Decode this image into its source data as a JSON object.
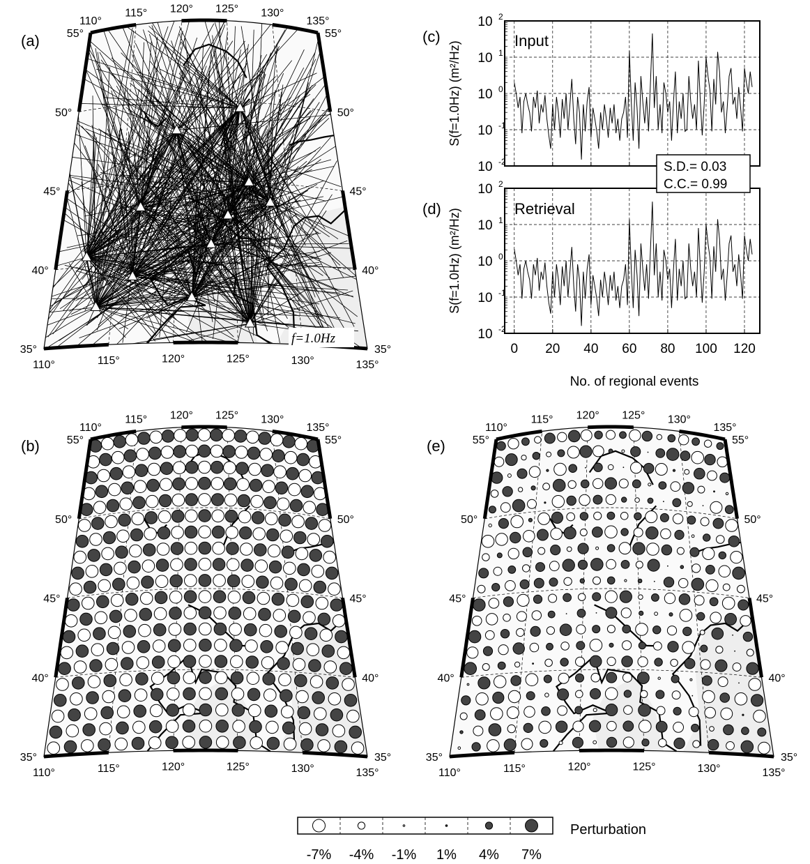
{
  "panels": {
    "a": {
      "label": "(a)",
      "freq_label": "f=1.0Hz"
    },
    "b": {
      "label": "(b)"
    },
    "c": {
      "label": "(c)",
      "title": "Input"
    },
    "d": {
      "label": "(d)",
      "title": "Retrieval"
    },
    "e": {
      "label": "(e)"
    }
  },
  "map_ticks": {
    "lon": [
      "110°",
      "115°",
      "120°",
      "125°",
      "130°",
      "135°"
    ],
    "lat": [
      "35°",
      "40°",
      "45°",
      "50°",
      "55°"
    ]
  },
  "stats": {
    "sd": "S.D.= 0.03",
    "cc": "C.C.= 0.99"
  },
  "chart_data": [
    {
      "type": "line",
      "title": "Input",
      "xlabel": "No. of regional events",
      "ylabel": "S(f=1.0Hz) (m²/Hz)",
      "xlim": [
        -5,
        128
      ],
      "ylim": [
        0.01,
        100
      ],
      "log_y": true,
      "x_ticks": [
        "0",
        "20",
        "40",
        "60",
        "80",
        "100",
        "120"
      ],
      "y_ticks": [
        "10⁻²",
        "10⁻¹",
        "10⁰",
        "10¹",
        "10²"
      ],
      "grid": "dashed",
      "x": [
        0,
        1,
        2,
        3,
        4,
        5,
        6,
        7,
        8,
        9,
        10,
        11,
        12,
        13,
        14,
        15,
        16,
        17,
        18,
        19,
        20,
        21,
        22,
        23,
        24,
        25,
        26,
        27,
        28,
        29,
        30,
        31,
        32,
        33,
        34,
        35,
        36,
        37,
        38,
        39,
        40,
        41,
        42,
        43,
        44,
        45,
        46,
        47,
        48,
        49,
        50,
        51,
        52,
        53,
        54,
        55,
        56,
        57,
        58,
        59,
        60,
        61,
        62,
        63,
        64,
        65,
        66,
        67,
        68,
        69,
        70,
        71,
        72,
        73,
        74,
        75,
        76,
        77,
        78,
        79,
        80,
        81,
        82,
        83,
        84,
        85,
        86,
        87,
        88,
        89,
        90,
        91,
        92,
        93,
        94,
        95,
        96,
        97,
        98,
        99,
        100,
        101,
        102,
        103,
        104,
        105,
        106,
        107,
        108,
        109,
        110,
        111,
        112,
        113,
        114,
        115,
        116,
        117,
        118,
        119,
        120,
        121,
        122,
        123,
        124
      ],
      "values": [
        2,
        1,
        0.4,
        0.8,
        0.08,
        0.6,
        1,
        0.5,
        0.3,
        0.09,
        0.8,
        0.4,
        1.2,
        0.15,
        0.5,
        0.3,
        0.9,
        0.2,
        0.07,
        0.03,
        0.5,
        0.1,
        0.8,
        0.3,
        0.06,
        0.7,
        0.2,
        1,
        0.1,
        0.5,
        2.5,
        0.2,
        0.04,
        0.8,
        0.3,
        0.015,
        0.5,
        0.09,
        0.6,
        1.5,
        0.06,
        0.4,
        0.2,
        0.09,
        0.03,
        0.3,
        0.1,
        0.5,
        0.2,
        0.06,
        0.4,
        0.15,
        0.5,
        0.08,
        0.2,
        0.05,
        0.2,
        0.3,
        0.8,
        0.06,
        15,
        0.6,
        0.05,
        2,
        0.4,
        0.03,
        3,
        0.6,
        0.15,
        0.8,
        0.09,
        2,
        45,
        0.4,
        3,
        0.1,
        0.5,
        0.08,
        2,
        1,
        0.3,
        0.6,
        0.05,
        0.6,
        4,
        0.08,
        0.6,
        0.2,
        1,
        0.09,
        0.1,
        3,
        0.6,
        0.2,
        0.5,
        0.1,
        8,
        0.6,
        0.07,
        0.5,
        10,
        3,
        1.2,
        0.09,
        2.5,
        0.5,
        14,
        4,
        0.3,
        0.6,
        0.08,
        0.4,
        3,
        5,
        0.5,
        0.8,
        0.2,
        1.5,
        0.4,
        0.09,
        5,
        2,
        1,
        4,
        1.5
      ]
    },
    {
      "type": "line",
      "title": "Retrieval",
      "xlabel": "No. of regional events",
      "ylabel": "S(f=1.0Hz) (m²/Hz)",
      "xlim": [
        -5,
        128
      ],
      "ylim": [
        0.01,
        100
      ],
      "log_y": true,
      "x_ticks": [
        "0",
        "20",
        "40",
        "60",
        "80",
        "100",
        "120"
      ],
      "y_ticks": [
        "10⁻²",
        "10⁻¹",
        "10⁰",
        "10¹",
        "10²"
      ],
      "grid": "dashed",
      "x": [
        0,
        1,
        2,
        3,
        4,
        5,
        6,
        7,
        8,
        9,
        10,
        11,
        12,
        13,
        14,
        15,
        16,
        17,
        18,
        19,
        20,
        21,
        22,
        23,
        24,
        25,
        26,
        27,
        28,
        29,
        30,
        31,
        32,
        33,
        34,
        35,
        36,
        37,
        38,
        39,
        40,
        41,
        42,
        43,
        44,
        45,
        46,
        47,
        48,
        49,
        50,
        51,
        52,
        53,
        54,
        55,
        56,
        57,
        58,
        59,
        60,
        61,
        62,
        63,
        64,
        65,
        66,
        67,
        68,
        69,
        70,
        71,
        72,
        73,
        74,
        75,
        76,
        77,
        78,
        79,
        80,
        81,
        82,
        83,
        84,
        85,
        86,
        87,
        88,
        89,
        90,
        91,
        92,
        93,
        94,
        95,
        96,
        97,
        98,
        99,
        100,
        101,
        102,
        103,
        104,
        105,
        106,
        107,
        108,
        109,
        110,
        111,
        112,
        113,
        114,
        115,
        116,
        117,
        118,
        119,
        120,
        121,
        122,
        123,
        124
      ],
      "values": [
        2.1,
        1,
        0.4,
        0.8,
        0.09,
        0.6,
        1,
        0.5,
        0.3,
        0.09,
        0.8,
        0.4,
        1.2,
        0.15,
        0.5,
        0.3,
        0.9,
        0.2,
        0.07,
        0.035,
        0.5,
        0.1,
        0.8,
        0.3,
        0.06,
        0.7,
        0.2,
        1,
        0.1,
        0.5,
        2.4,
        0.2,
        0.04,
        0.8,
        0.3,
        0.016,
        0.5,
        0.09,
        0.6,
        1.5,
        0.06,
        0.4,
        0.2,
        0.09,
        0.03,
        0.3,
        0.1,
        0.5,
        0.2,
        0.06,
        0.4,
        0.15,
        0.5,
        0.08,
        0.2,
        0.05,
        0.2,
        0.3,
        0.8,
        0.06,
        14,
        0.6,
        0.05,
        2,
        0.4,
        0.03,
        3,
        0.6,
        0.15,
        0.8,
        0.09,
        2,
        43,
        0.4,
        3,
        0.1,
        0.5,
        0.08,
        2,
        1,
        0.3,
        0.6,
        0.05,
        0.6,
        4,
        0.08,
        0.6,
        0.2,
        1,
        0.09,
        0.1,
        3,
        0.6,
        0.2,
        0.5,
        0.1,
        8,
        0.6,
        0.07,
        0.5,
        10,
        3,
        1.2,
        0.09,
        2.5,
        0.5,
        14,
        4,
        0.3,
        0.6,
        0.08,
        0.4,
        3,
        5,
        0.5,
        0.8,
        0.2,
        1.5,
        0.4,
        0.09,
        5,
        2,
        1,
        4,
        1.5
      ]
    }
  ],
  "legend": {
    "title": "Perturbation",
    "labels": [
      "-7%",
      "-4%",
      "-1%",
      "1%",
      "4%",
      "7%"
    ],
    "values": [
      -7,
      -4,
      -1,
      1,
      4,
      7
    ]
  },
  "colors": {
    "positive": "#444444",
    "negative": "#ffffff",
    "sea": "#eeeeee",
    "land": "#fafafa"
  }
}
